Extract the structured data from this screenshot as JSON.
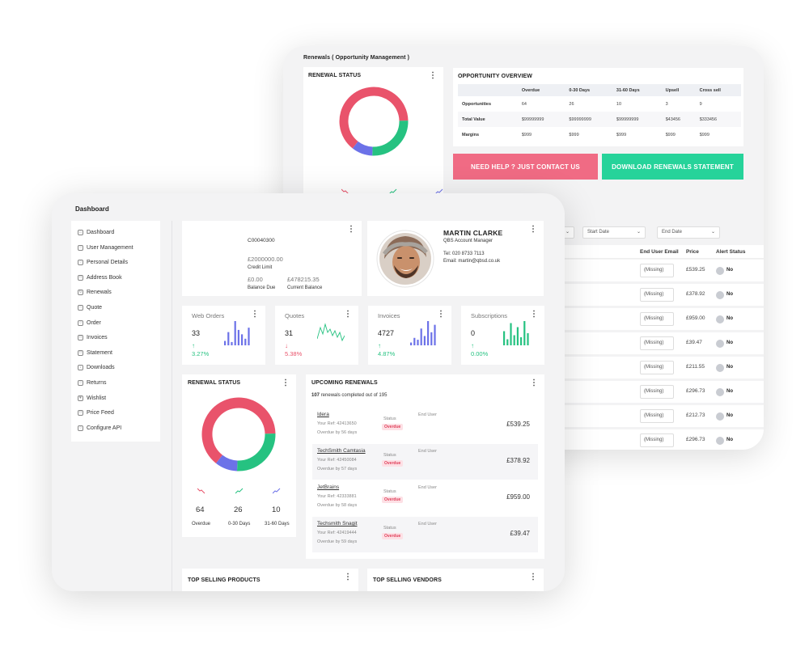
{
  "back": {
    "title": "Renewals ( Opportunity Management )",
    "renewal_status": {
      "title": "RENEWAL STATUS",
      "menu": "⋮",
      "stats": [
        {
          "value": "64",
          "color": "#e9536b"
        },
        {
          "value": "26",
          "color": "#26c281"
        },
        {
          "value": "10",
          "color": "#6c72e8"
        }
      ]
    },
    "opportunity": {
      "title": "OPPORTUNITY OVERVIEW",
      "columns": [
        "",
        "Overdue",
        "0-30 Days",
        "31-60 Days",
        "Upsell",
        "Cross sell"
      ],
      "rows": [
        [
          "Opportunities",
          "64",
          "26",
          "10",
          "3",
          "9"
        ],
        [
          "Total Value",
          "$99999999",
          "$99999999",
          "$99999999",
          "$43456",
          "$333456"
        ],
        [
          "Margins",
          "$999",
          "$999",
          "$999",
          "$999",
          "$999"
        ]
      ]
    },
    "help_button": "NEED HELP ? JUST CONTACT US",
    "download_button": "DOWNLOAD RENEWALS STATEMENT",
    "start_date": "Start Date",
    "end_date": "End Date",
    "table_headers": {
      "email": "End User Email",
      "price": "Price",
      "alert": "Alert Status"
    },
    "table_rows": [
      {
        "email": "(Missing)",
        "price": "£539.25",
        "alert": "No"
      },
      {
        "email": "(Missing)",
        "price": "£378.92",
        "alert": "No"
      },
      {
        "email": "(Missing)",
        "price": "£959.00",
        "alert": "No"
      },
      {
        "email": "(Missing)",
        "price": "£39.47",
        "alert": "No"
      },
      {
        "email": "(Missing)",
        "price": "£211.55",
        "alert": "No"
      },
      {
        "email": "(Missing)",
        "price": "£296.73",
        "alert": "No"
      },
      {
        "email": "(Missing)",
        "price": "£212.73",
        "alert": "No"
      },
      {
        "email": "(Missing)",
        "price": "£296.73",
        "alert": "No"
      }
    ],
    "colors": {
      "help": "#f06b84",
      "download": "#26d39a"
    }
  },
  "front": {
    "title": "Dashboard",
    "sidebar": [
      "Dashboard",
      "User Management",
      "Personal Details",
      "Address Book",
      "Renewals",
      "Quote",
      "Order",
      "Invoices",
      "Statement",
      "Downloads",
      "Returns",
      "Wishlist",
      "Price Feed",
      "Configure API"
    ],
    "account": {
      "code": "C00040300",
      "credit_limit_value": "£2000000.00",
      "credit_limit_label": "Credit Limit",
      "balance_due_value": "£0.00",
      "balance_due_label": "Balance Due",
      "current_balance_value": "£478215.35",
      "current_balance_label": "Current Balance"
    },
    "profile": {
      "name": "MARTIN CLARKE",
      "role": "QBS Account Manager",
      "tel": "Tel: 020 8733 7113",
      "email": "Email: martin@qbsd.co.uk"
    },
    "metrics": [
      {
        "title": "Web Orders",
        "value": "33",
        "arrow": "↑",
        "pct": "3.27%",
        "trend": "up",
        "chart": "bars",
        "color": "#6c72e8",
        "bars": [
          4,
          12,
          3,
          22,
          14,
          10,
          6,
          16
        ]
      },
      {
        "title": "Quotes",
        "value": "31",
        "arrow": "↓",
        "pct": "5.38%",
        "trend": "down",
        "chart": "line",
        "color": "#26c281"
      },
      {
        "title": "Invoices",
        "value": "4727",
        "arrow": "↑",
        "pct": "4.87%",
        "trend": "up",
        "chart": "bars",
        "color": "#6c72e8",
        "bars": [
          3,
          8,
          6,
          18,
          10,
          26,
          14,
          22
        ]
      },
      {
        "title": "Subscriptions",
        "value": "0",
        "arrow": "↑",
        "pct": "0.00%",
        "trend": "up",
        "chart": "bars",
        "color": "#26c281",
        "bars": [
          14,
          6,
          22,
          10,
          18,
          8,
          24,
          12
        ]
      }
    ],
    "renewal_status": {
      "title": "RENEWAL STATUS",
      "stats": [
        {
          "value": "64",
          "label": "Overdue",
          "color": "#e9536b"
        },
        {
          "value": "26",
          "label": "0-30 Days",
          "color": "#26c281"
        },
        {
          "value": "10",
          "label": "31-60 Days",
          "color": "#6c72e8"
        }
      ]
    },
    "upcoming": {
      "title": "UPCOMING RENEWALS",
      "count_bold": "107",
      "count_text": "renewals completed out of 195",
      "items": [
        {
          "name": "Idera",
          "ref": "Your Ref: 42413650",
          "overdue": "Overdue by 56 days",
          "status_label": "Status",
          "status": "Overdue",
          "end_user": "End User",
          "price": "£539.25"
        },
        {
          "name": "TechSmith Camtasia",
          "ref": "Your Ref: 42450084",
          "overdue": "Overdue by 57 days",
          "status_label": "Status",
          "status": "Overdue",
          "end_user": "End User",
          "price": "£378.92"
        },
        {
          "name": "JetBrains",
          "ref": "Your Ref: 42333881",
          "overdue": "Overdue by 58 days",
          "status_label": "Status",
          "status": "Overdue",
          "end_user": "End User",
          "price": "£959.00"
        },
        {
          "name": "Techsmith Snagit",
          "ref": "Your Ref: 42419444",
          "overdue": "Overdue by 59 days",
          "status_label": "Status",
          "status": "Overdue",
          "end_user": "End User",
          "price": "£39.47"
        }
      ]
    },
    "top_products": "TOP SELLING PRODUCTS",
    "top_vendors": "TOP SELLING VENDORS",
    "menu": "⋮"
  },
  "chart_data": {
    "type": "pie",
    "categories": [
      "Overdue",
      "0-30 Days",
      "31-60 Days"
    ],
    "values": [
      64,
      26,
      10
    ],
    "colors": [
      "#e9536b",
      "#26c281",
      "#6c72e8"
    ]
  }
}
